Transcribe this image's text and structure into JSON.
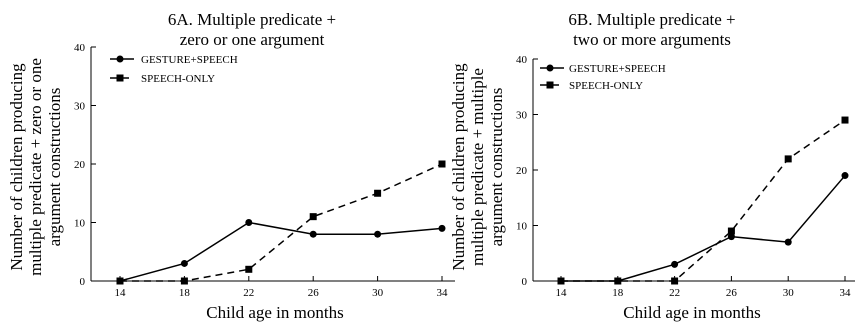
{
  "chart_data": [
    {
      "type": "line",
      "title_lines": [
        "6A. Multiple predicate +",
        "zero or one argument"
      ],
      "xlabel": "Child age in months",
      "ylabel_lines": [
        "Number of children producing",
        "multiple predicate + zero or one",
        "argument constructions"
      ],
      "x": [
        14,
        18,
        22,
        26,
        30,
        34
      ],
      "ylim": [
        0,
        40
      ],
      "yticks": [
        0,
        10,
        20,
        30,
        40
      ],
      "grid": false,
      "legend_position": "top-left",
      "series": [
        {
          "name": "GESTURE+SPEECH",
          "marker": "circle",
          "dash": "solid",
          "values": [
            0,
            3,
            10,
            8,
            8,
            9
          ]
        },
        {
          "name": "SPEECH-ONLY",
          "marker": "square",
          "dash": "dashed",
          "values": [
            0,
            0,
            2,
            11,
            15,
            20
          ]
        }
      ]
    },
    {
      "type": "line",
      "title_lines": [
        "6B. Multiple predicate +",
        "two or more arguments"
      ],
      "xlabel": "Child age in months",
      "ylabel_lines": [
        "Number of children producing",
        "multiple predicate + multiple",
        "argument constructions"
      ],
      "x": [
        14,
        18,
        22,
        26,
        30,
        34
      ],
      "ylim": [
        0,
        40
      ],
      "yticks": [
        0,
        10,
        20,
        30,
        40
      ],
      "grid": false,
      "legend_position": "top-left",
      "series": [
        {
          "name": "GESTURE+SPEECH",
          "marker": "circle",
          "dash": "solid",
          "values": [
            0,
            0,
            3,
            8,
            7,
            19
          ]
        },
        {
          "name": "SPEECH-ONLY",
          "marker": "square",
          "dash": "dashed",
          "values": [
            0,
            0,
            0,
            9,
            22,
            29
          ]
        }
      ]
    }
  ]
}
